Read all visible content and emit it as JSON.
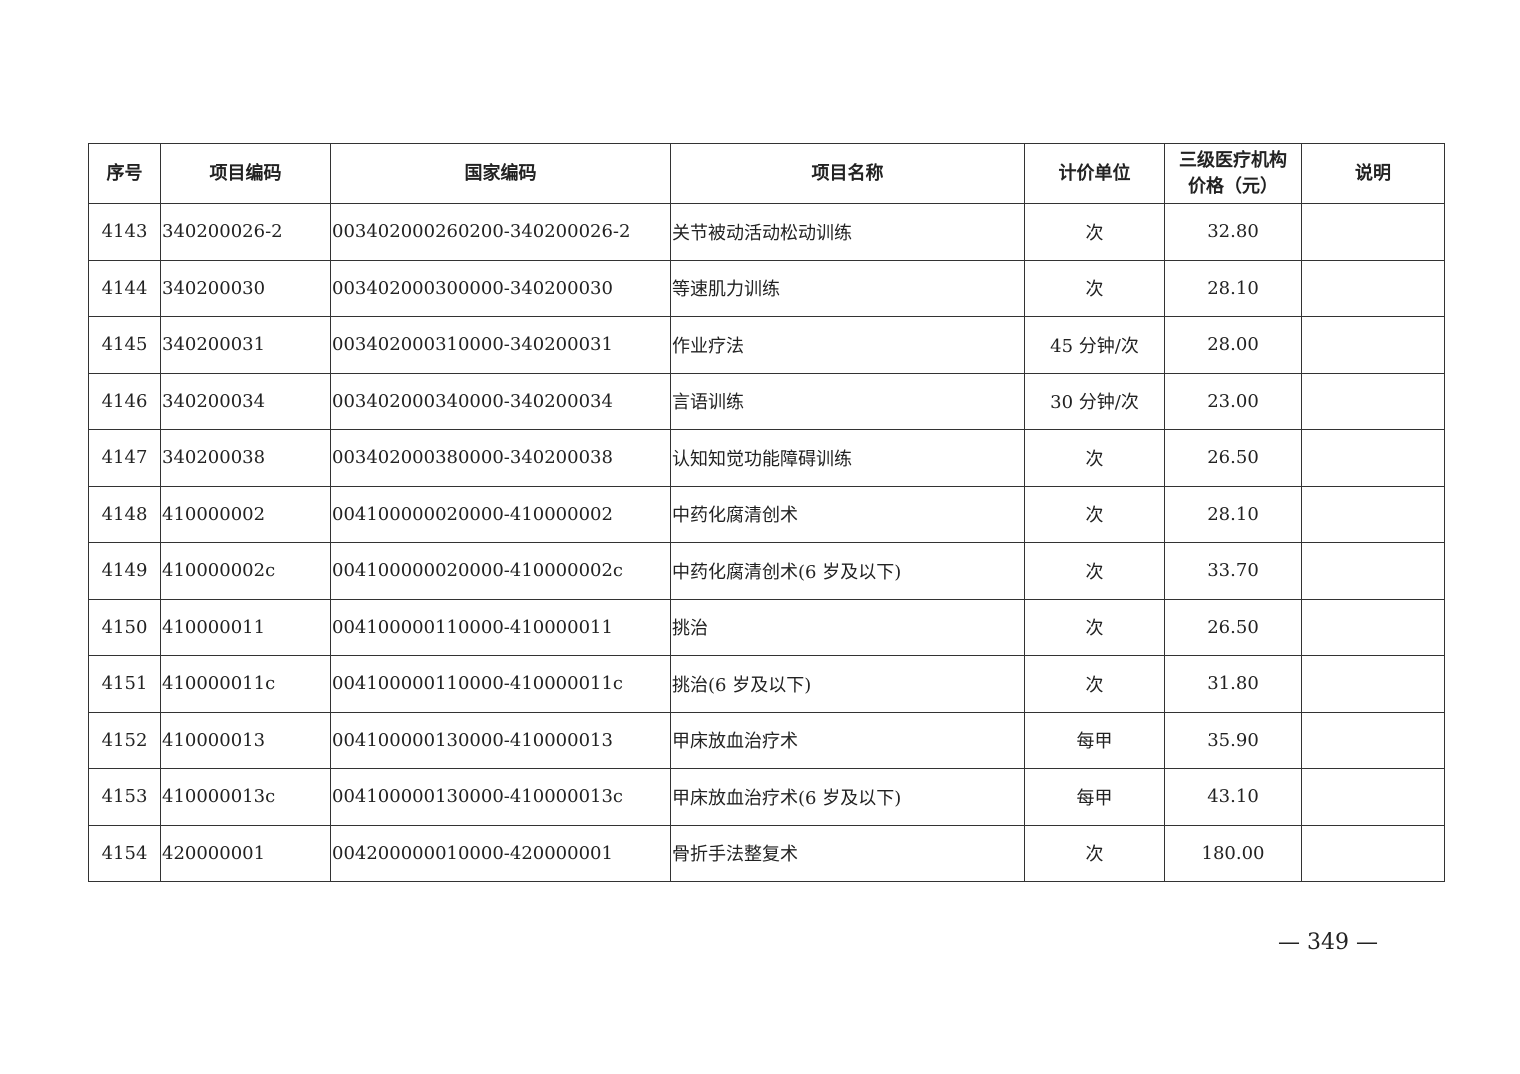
{
  "table": {
    "headers": [
      "序号",
      "项目编码",
      "国家编码",
      "项目名称",
      "计价单位",
      "三级医疗机构价格（元）",
      "说明"
    ],
    "header_price_line1": "三级医疗机构",
    "header_price_line2": "价格（元）",
    "rows": [
      {
        "no": "4143",
        "code": "340200026-2",
        "national": "003402000260200-340200026-2",
        "name": "关节被动活动松动训练",
        "unit": "次",
        "price": "32.80",
        "note": ""
      },
      {
        "no": "4144",
        "code": "340200030",
        "national": "003402000300000-340200030",
        "name": "等速肌力训练",
        "unit": "次",
        "price": "28.10",
        "note": ""
      },
      {
        "no": "4145",
        "code": "340200031",
        "national": "003402000310000-340200031",
        "name": "作业疗法",
        "unit": "45 分钟/次",
        "price": "28.00",
        "note": ""
      },
      {
        "no": "4146",
        "code": "340200034",
        "national": "003402000340000-340200034",
        "name": "言语训练",
        "unit": "30 分钟/次",
        "price": "23.00",
        "note": ""
      },
      {
        "no": "4147",
        "code": "340200038",
        "national": "003402000380000-340200038",
        "name": "认知知觉功能障碍训练",
        "unit": "次",
        "price": "26.50",
        "note": ""
      },
      {
        "no": "4148",
        "code": "410000002",
        "national": "004100000020000-410000002",
        "name": "中药化腐清创术",
        "unit": "次",
        "price": "28.10",
        "note": ""
      },
      {
        "no": "4149",
        "code": "410000002c",
        "national": "004100000020000-410000002c",
        "name": "中药化腐清创术(6 岁及以下)",
        "unit": "次",
        "price": "33.70",
        "note": ""
      },
      {
        "no": "4150",
        "code": "410000011",
        "national": "004100000110000-410000011",
        "name": "挑治",
        "unit": "次",
        "price": "26.50",
        "note": ""
      },
      {
        "no": "4151",
        "code": "410000011c",
        "national": "004100000110000-410000011c",
        "name": "挑治(6 岁及以下)",
        "unit": "次",
        "price": "31.80",
        "note": ""
      },
      {
        "no": "4152",
        "code": "410000013",
        "national": "004100000130000-410000013",
        "name": "甲床放血治疗术",
        "unit": "每甲",
        "price": "35.90",
        "note": ""
      },
      {
        "no": "4153",
        "code": "410000013c",
        "national": "004100000130000-410000013c",
        "name": "甲床放血治疗术(6 岁及以下)",
        "unit": "每甲",
        "price": "43.10",
        "note": ""
      },
      {
        "no": "4154",
        "code": "420000001",
        "national": "004200000010000-420000001",
        "name": "骨折手法整复术",
        "unit": "次",
        "price": "180.00",
        "note": ""
      }
    ]
  },
  "page_number": "— 349 —"
}
